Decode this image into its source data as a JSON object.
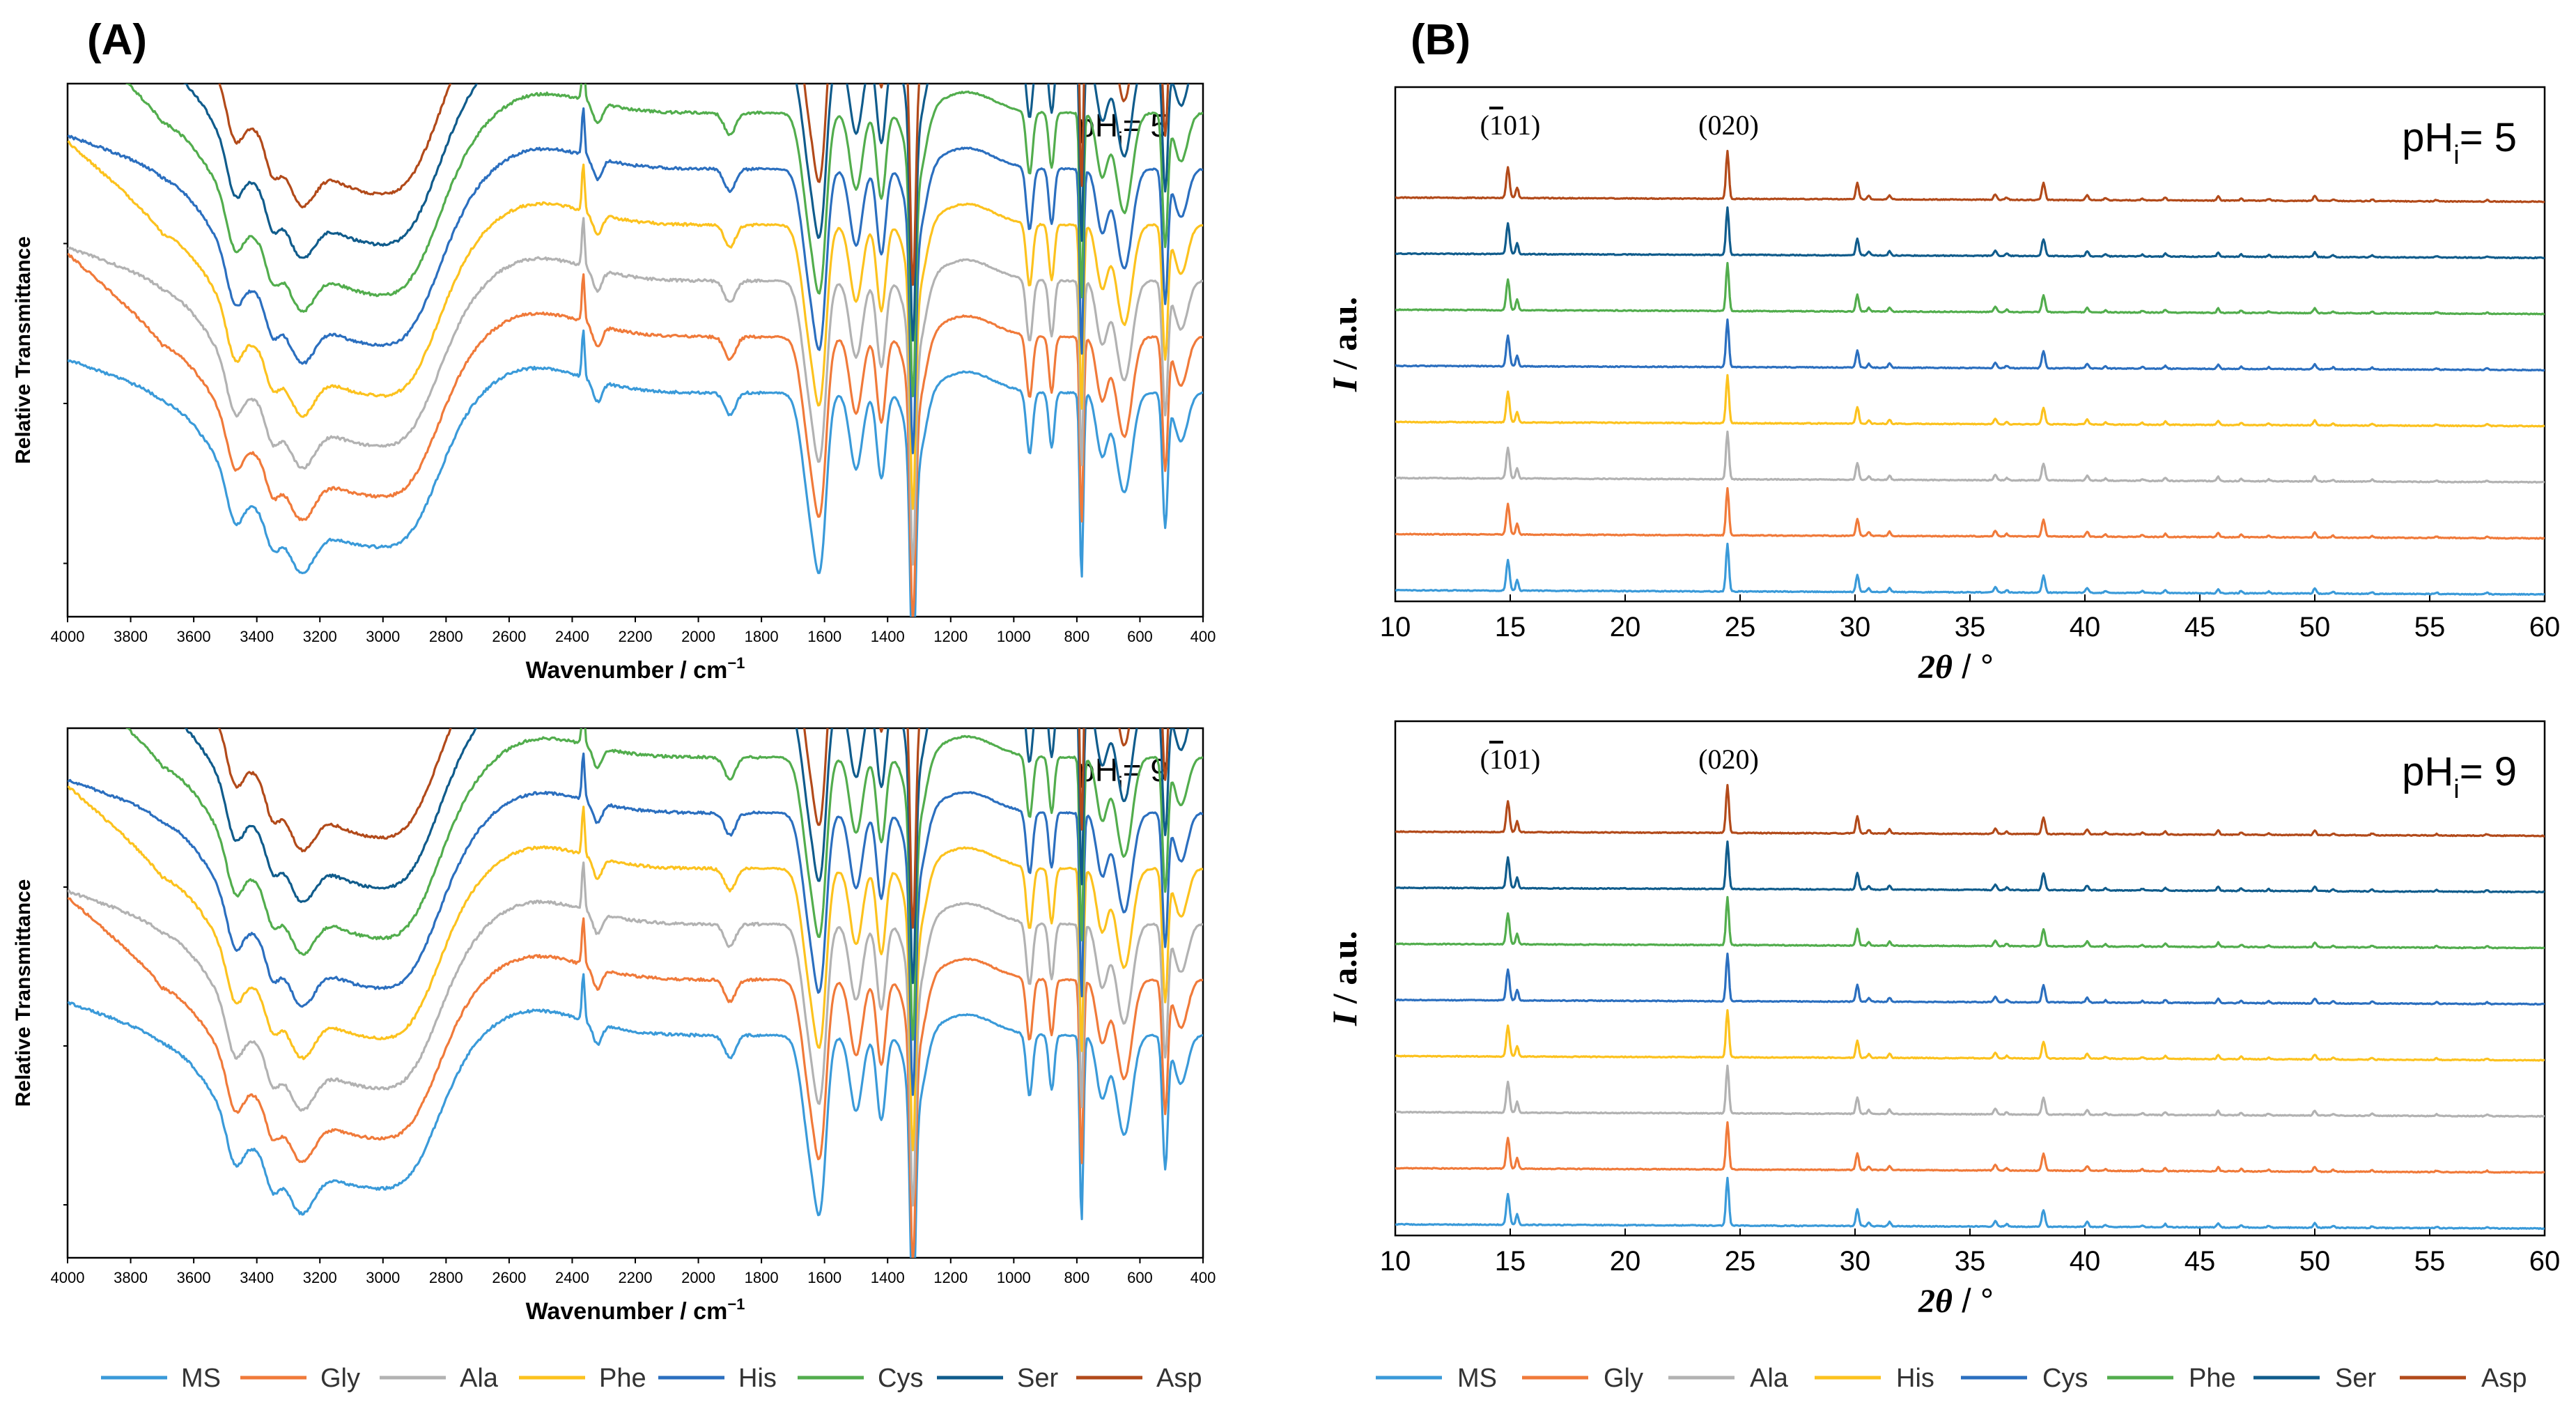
{
  "figure": {
    "panel_a_label": "(A)",
    "panel_b_label": "(B)"
  },
  "chart_data": [
    {
      "id": "ftir_ph5",
      "type": "line",
      "panel": "(A)",
      "title": "pHi= 5",
      "ph_label": {
        "base": "pH",
        "sub": "i",
        "rest": "= 5"
      },
      "xlabel": {
        "base": "Wavenumber / cm",
        "sup": "−1"
      },
      "ylabel": "Relative Transmittance",
      "xlim": [
        4000,
        400
      ],
      "x_reversed": true,
      "x_ticks": [
        "4000",
        "3800",
        "3600",
        "3400",
        "3200",
        "3000",
        "2800",
        "2600",
        "2400",
        "2200",
        "2000",
        "1800",
        "1600",
        "1400",
        "1200",
        "1000",
        "800",
        "600",
        "400"
      ],
      "series": [
        {
          "name": "MS",
          "color": "#3a9ad9",
          "offset": 0
        },
        {
          "name": "Gly",
          "color": "#f07a3a",
          "offset": 1
        },
        {
          "name": "Ala",
          "color": "#b2b2b2",
          "offset": 2
        },
        {
          "name": "Phe",
          "color": "#fcc21e",
          "offset": 3
        },
        {
          "name": "His",
          "color": "#2b6fbf",
          "offset": 4
        },
        {
          "name": "Cys",
          "color": "#52ad4d",
          "offset": 5
        },
        {
          "name": "Ser",
          "color": "#105c8c",
          "offset": 6
        },
        {
          "name": "Asp",
          "color": "#b24a1a",
          "offset": 7
        }
      ]
    },
    {
      "id": "ftir_ph9",
      "type": "line",
      "panel": "(A)",
      "title": "pHi= 9",
      "ph_label": {
        "base": "pH",
        "sub": "i",
        "rest": "= 9"
      },
      "xlabel": {
        "base": "Wavenumber / cm",
        "sup": "−1"
      },
      "ylabel": "Relative Transmittance",
      "xlim": [
        4000,
        400
      ],
      "x_reversed": true,
      "x_ticks": [
        "4000",
        "3800",
        "3600",
        "3400",
        "3200",
        "3000",
        "2800",
        "2600",
        "2400",
        "2200",
        "2000",
        "1800",
        "1600",
        "1400",
        "1200",
        "1000",
        "800",
        "600",
        "400"
      ],
      "series": [
        {
          "name": "MS",
          "color": "#3a9ad9",
          "offset": 0
        },
        {
          "name": "Gly",
          "color": "#f07a3a",
          "offset": 1
        },
        {
          "name": "Ala",
          "color": "#b2b2b2",
          "offset": 2
        },
        {
          "name": "Phe",
          "color": "#fcc21e",
          "offset": 3
        },
        {
          "name": "His",
          "color": "#2b6fbf",
          "offset": 4
        },
        {
          "name": "Cys",
          "color": "#52ad4d",
          "offset": 5
        },
        {
          "name": "Ser",
          "color": "#105c8c",
          "offset": 6
        },
        {
          "name": "Asp",
          "color": "#b24a1a",
          "offset": 7
        }
      ]
    },
    {
      "id": "xrd_ph5",
      "type": "line",
      "panel": "(B)",
      "title": "pHi= 5",
      "ph_label": {
        "base": "pH",
        "sub": "i",
        "rest": "= 5"
      },
      "xlabel": {
        "italic": "2θ",
        "rest": " / °"
      },
      "ylabel": {
        "italic": "I",
        "rest": " / a.u."
      },
      "xlim": [
        10,
        60
      ],
      "x_ticks": [
        "10",
        "15",
        "20",
        "25",
        "30",
        "35",
        "40",
        "45",
        "50",
        "55",
        "60"
      ],
      "annotations": [
        {
          "bar": "1",
          "prefix": "(",
          "suffix": "01)",
          "x": 15.0
        },
        {
          "text": "(020)",
          "x": 24.5
        }
      ],
      "peaks_2theta": [
        14.9,
        15.3,
        24.45,
        30.1,
        31.5,
        36.1,
        38.2,
        40.1,
        43.5,
        45.8,
        50.0
      ],
      "series": [
        {
          "name": "MS",
          "color": "#3a9ad9",
          "offset": 0
        },
        {
          "name": "Gly",
          "color": "#f07a3a",
          "offset": 1
        },
        {
          "name": "Ala",
          "color": "#b2b2b2",
          "offset": 2
        },
        {
          "name": "His",
          "color": "#fcc21e",
          "offset": 3
        },
        {
          "name": "Cys",
          "color": "#2b6fbf",
          "offset": 4
        },
        {
          "name": "Phe",
          "color": "#52ad4d",
          "offset": 5
        },
        {
          "name": "Ser",
          "color": "#105c8c",
          "offset": 6
        },
        {
          "name": "Asp",
          "color": "#b24a1a",
          "offset": 7
        }
      ]
    },
    {
      "id": "xrd_ph9",
      "type": "line",
      "panel": "(B)",
      "title": "pHi= 9",
      "ph_label": {
        "base": "pH",
        "sub": "i",
        "rest": "= 9"
      },
      "xlabel": {
        "italic": "2θ",
        "rest": " / °"
      },
      "ylabel": {
        "italic": "I",
        "rest": " / a.u."
      },
      "xlim": [
        10,
        60
      ],
      "x_ticks": [
        "10",
        "15",
        "20",
        "25",
        "30",
        "35",
        "40",
        "45",
        "50",
        "55",
        "60"
      ],
      "annotations": [
        {
          "bar": "1",
          "prefix": "(",
          "suffix": "01)",
          "x": 15.0
        },
        {
          "text": "(020)",
          "x": 24.5
        }
      ],
      "peaks_2theta": [
        14.9,
        15.3,
        24.45,
        30.1,
        31.5,
        36.1,
        38.2,
        40.1,
        43.5,
        45.8,
        50.0
      ],
      "series": [
        {
          "name": "MS",
          "color": "#3a9ad9",
          "offset": 0
        },
        {
          "name": "Gly",
          "color": "#f07a3a",
          "offset": 1
        },
        {
          "name": "Ala",
          "color": "#b2b2b2",
          "offset": 2
        },
        {
          "name": "His",
          "color": "#fcc21e",
          "offset": 3
        },
        {
          "name": "Cys",
          "color": "#2b6fbf",
          "offset": 4
        },
        {
          "name": "Phe",
          "color": "#52ad4d",
          "offset": 5
        },
        {
          "name": "Ser",
          "color": "#105c8c",
          "offset": 6
        },
        {
          "name": "Asp",
          "color": "#b24a1a",
          "offset": 7
        }
      ]
    }
  ],
  "legends": {
    "ftir": [
      {
        "name": "MS",
        "color": "#3a9ad9"
      },
      {
        "name": "Gly",
        "color": "#f07a3a"
      },
      {
        "name": "Ala",
        "color": "#b2b2b2"
      },
      {
        "name": "Phe",
        "color": "#fcc21e"
      },
      {
        "name": "His",
        "color": "#2b6fbf"
      },
      {
        "name": "Cys",
        "color": "#52ad4d"
      },
      {
        "name": "Ser",
        "color": "#105c8c"
      },
      {
        "name": "Asp",
        "color": "#b24a1a"
      }
    ],
    "xrd": [
      {
        "name": "MS",
        "color": "#3a9ad9"
      },
      {
        "name": "Gly",
        "color": "#f07a3a"
      },
      {
        "name": "Ala",
        "color": "#b2b2b2"
      },
      {
        "name": "His",
        "color": "#fcc21e"
      },
      {
        "name": "Cys",
        "color": "#2b6fbf"
      },
      {
        "name": "Phe",
        "color": "#52ad4d"
      },
      {
        "name": "Ser",
        "color": "#105c8c"
      },
      {
        "name": "Asp",
        "color": "#b24a1a"
      }
    ]
  }
}
